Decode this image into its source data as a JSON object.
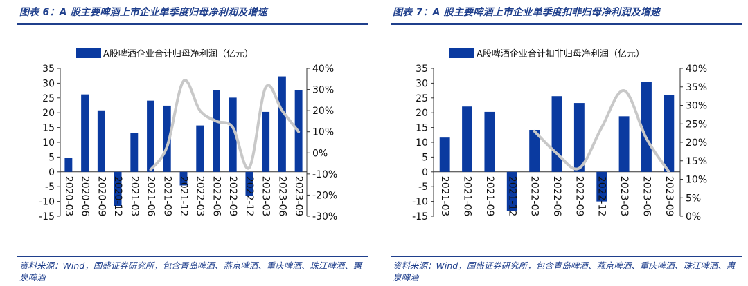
{
  "figures": [
    {
      "title": "图表 6：A 股主要啤酒上市企业单季度归母净利润及增速",
      "source": "资料来源：Wind，国盛证券研究所，包含青岛啤酒、燕京啤酒、重庆啤酒、珠江啤酒、惠泉啤酒"
    },
    {
      "title": "图表 7：A 股主要啤酒上市企业单季度扣非归母净利润及增速",
      "source": "资料来源：Wind，国盛证券研究所，包含青岛啤酒、燕京啤酒、重庆啤酒、珠江啤酒、惠泉啤酒"
    }
  ],
  "chart_data": [
    {
      "type": "bar",
      "legend": "A股啤酒企业合计归母净利润（亿元）",
      "legend_position": "top",
      "categories": [
        "2020-03",
        "2020-06",
        "2020-09",
        "2020-12",
        "2021-03",
        "2021-06",
        "2021-09",
        "2021-12",
        "2022-03",
        "2022-06",
        "2022-09",
        "2022-12",
        "2023-03",
        "2023-06",
        "2023-09"
      ],
      "series": [
        {
          "name": "A股啤酒企业合计归母净利润（亿元）",
          "type": "bar",
          "axis": "left",
          "values": [
            4.8,
            26.2,
            20.8,
            -11.5,
            13.2,
            24.1,
            22.4,
            -4.6,
            15.7,
            27.6,
            25.1,
            -8.0,
            20.3,
            32.3,
            27.6
          ]
        },
        {
          "name": "growth",
          "type": "line",
          "axis": "right",
          "color": "#c8c8c8",
          "values": [
            null,
            null,
            null,
            null,
            null,
            -8,
            3,
            34,
            20,
            15,
            12,
            -7,
            31,
            20,
            10
          ]
        }
      ],
      "ylim": [
        -15,
        35
      ],
      "yticks": [
        -15,
        -10,
        -5,
        0,
        5,
        10,
        15,
        20,
        25,
        30,
        35
      ],
      "ylim_right": [
        -30,
        40
      ],
      "yticks_right": [
        "-30%",
        "-20%",
        "-10%",
        "0%",
        "10%",
        "20%",
        "30%",
        "40%"
      ],
      "bar_color": "#0a3aa0",
      "grid": false
    },
    {
      "type": "bar",
      "legend": "A股啤酒企业合计扣非归母净利润（亿元）",
      "legend_position": "top",
      "categories": [
        "2021-03",
        "2021-06",
        "2021-09",
        "2021-12",
        "2022-03",
        "2022-06",
        "2022-09",
        "2022-12",
        "2023-03",
        "2023-06",
        "2023-09"
      ],
      "series": [
        {
          "name": "A股啤酒企业合计扣非归母净利润（亿元）",
          "type": "bar",
          "axis": "left",
          "values": [
            11.6,
            22.1,
            20.3,
            -13.2,
            14.2,
            25.6,
            23.3,
            -10.0,
            18.8,
            30.4,
            26.0
          ]
        },
        {
          "name": "growth",
          "type": "line",
          "axis": "right",
          "color": "#c8c8c8",
          "values": [
            null,
            null,
            null,
            null,
            23,
            17,
            13,
            24,
            34,
            21,
            12
          ]
        }
      ],
      "ylim": [
        -15,
        35
      ],
      "yticks": [
        -15,
        -10,
        -5,
        0,
        5,
        10,
        15,
        20,
        25,
        30,
        35
      ],
      "ylim_right": [
        0,
        40
      ],
      "yticks_right": [
        "0%",
        "5%",
        "10%",
        "15%",
        "20%",
        "25%",
        "30%",
        "35%",
        "40%"
      ],
      "bar_color": "#0a3aa0",
      "grid": false
    }
  ]
}
